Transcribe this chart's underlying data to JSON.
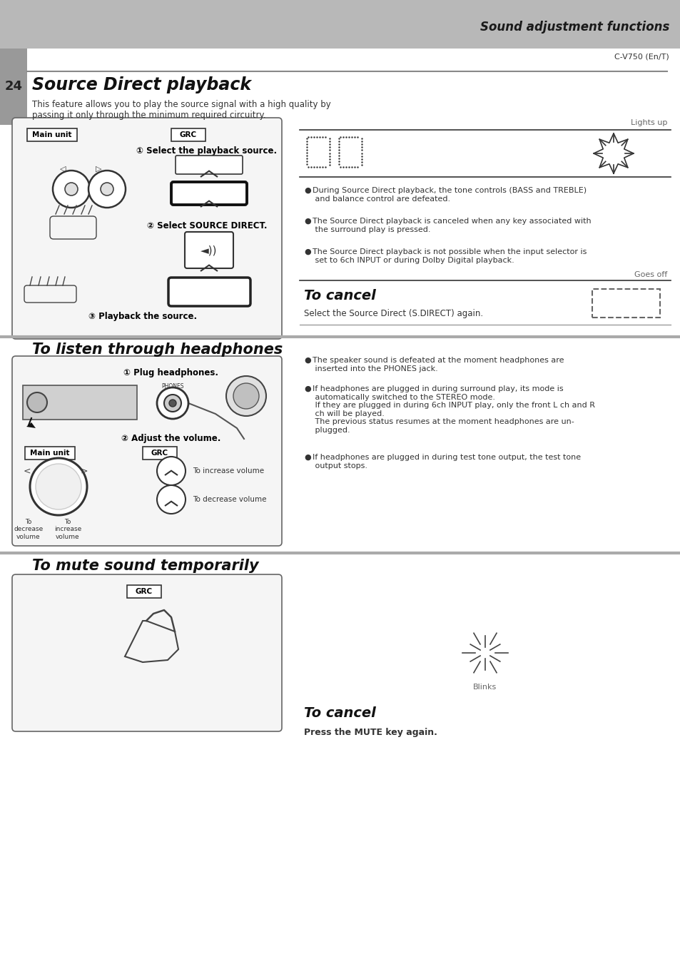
{
  "page_num": "24",
  "header_text": "Sound adjustment functions",
  "model": "C-V750 (En/T)",
  "section1_title": "Source Direct playback",
  "section1_desc": "This feature allows you to play the source signal with a high quality by\npassing it only through the minimum required circuitry.",
  "section1_bullets": [
    "During Source Direct playback, the tone controls (BASS and TREBLE)\n and balance control are defeated.",
    "The Source Direct playback is canceled when any key associated with\n the surround play is pressed.",
    "The Source Direct playback is not possible when the input selector is\n set to 6ch INPUT or during Dolby Digital playback."
  ],
  "step1": "① Select the playback source.",
  "step2": "② Select SOURCE DIRECT.",
  "step3": "③ Playback the source.",
  "lights_up": "Lights up",
  "goes_off": "Goes off",
  "to_cancel1_title": "To cancel",
  "to_cancel1_desc": "Select the Source Direct (S.DIRECT) again.",
  "section2_title": "To listen through headphones",
  "plug_step": "① Plug headphones.",
  "adjust_step": "② Adjust the volume.",
  "main_unit": "Main unit",
  "grc": "GRC",
  "to_increase": "To increase volume",
  "to_decrease": "To decrease volume",
  "to_dec_vol": "To\ndecrease\nvolume",
  "to_inc_vol": "To\nincrease\nvolume",
  "phones_label": "PHONES",
  "hp_bullet1": "The speaker sound is defeated at the moment headphones are\n inserted into the PHONES jack.",
  "hp_bullet2": "If headphones are plugged in during surround play, its mode is\n automatically switched to the STEREO mode.\n If they are plugged in during 6ch INPUT play, only the front L ch and R\n ch will be played.\n The previous status resumes at the moment headphones are un-\n plugged.",
  "hp_bullet3": "If headphones are plugged in during test tone output, the test tone\n output stops.",
  "section3_title": "To mute sound temporarily",
  "blinks": "Blinks",
  "to_cancel2_title": "To cancel",
  "to_cancel2_desc": "Press the MUTE key again."
}
